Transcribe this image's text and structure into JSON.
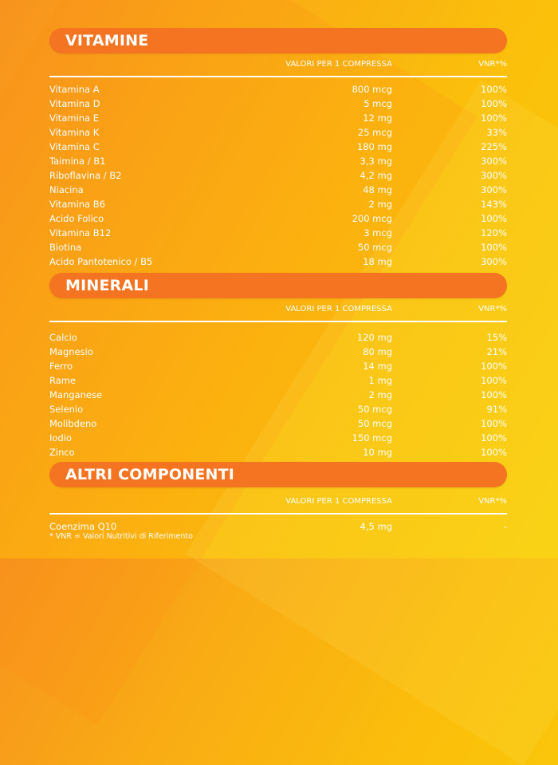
{
  "column_headers": {
    "per_tablet": "VALORI PER 1 COMPRESSA",
    "nrv": "VNR*%"
  },
  "vitamins": {
    "title": "VITAMINE",
    "rows": [
      {
        "name": "Vitamina A",
        "amount": "800 mcg",
        "nrv": "100%"
      },
      {
        "name": "Vitamina D",
        "amount": "5 mcg",
        "nrv": "100%"
      },
      {
        "name": "Vitamina E",
        "amount": "12 mg",
        "nrv": "100%"
      },
      {
        "name": "Vitamina K",
        "amount": "25 mcg",
        "nrv": "33%"
      },
      {
        "name": "Vitamina C",
        "amount": "180 mg",
        "nrv": "225%"
      },
      {
        "name": "Taimina / B1",
        "amount": "3,3 mg",
        "nrv": "300%"
      },
      {
        "name": "Riboflavina / B2",
        "amount": "4,2 mg",
        "nrv": "300%"
      },
      {
        "name": "Niacina",
        "amount": "48 mg",
        "nrv": "300%"
      },
      {
        "name": "Vitamina B6",
        "amount": "2 mg",
        "nrv": "143%"
      },
      {
        "name": "Acido Folico",
        "amount": "200 mcg",
        "nrv": "100%"
      },
      {
        "name": "Vitamina B12",
        "amount": "3 mcg",
        "nrv": "120%"
      },
      {
        "name": "Biotina",
        "amount": "50 mcg",
        "nrv": "100%"
      },
      {
        "name": "Acido Pantotenico / B5",
        "amount": "18 mg",
        "nrv": "300%"
      }
    ]
  },
  "minerals": {
    "title": "MINERALI",
    "rows": [
      {
        "name": "Calcio",
        "amount": "120 mg",
        "nrv": "15%"
      },
      {
        "name": "Magnesio",
        "amount": "80 mg",
        "nrv": "21%"
      },
      {
        "name": "Ferro",
        "amount": "14 mg",
        "nrv": "100%"
      },
      {
        "name": "Rame",
        "amount": "1 mg",
        "nrv": "100%"
      },
      {
        "name": "Manganese",
        "amount": "2 mg",
        "nrv": "100%"
      },
      {
        "name": "Selenio",
        "amount": "50 mcg",
        "nrv": "91%"
      },
      {
        "name": "Molibdeno",
        "amount": "50 mcg",
        "nrv": "100%"
      },
      {
        "name": "Iodio",
        "amount": "150 mcg",
        "nrv": "100%"
      },
      {
        "name": "Zinco",
        "amount": "10 mg",
        "nrv": "100%"
      }
    ]
  },
  "others": {
    "title": "ALTRI COMPONENTI",
    "rows": [
      {
        "name": "Coenzima Q10",
        "amount": "4,5 mg",
        "nrv": "-"
      }
    ]
  },
  "footnote": "* VNR = Valori Nutritivi di Riferimento",
  "colors": {
    "banner": "#f47421",
    "text": "#ffffff",
    "background_start": "#f7931e",
    "background_end": "#f9cf07"
  }
}
